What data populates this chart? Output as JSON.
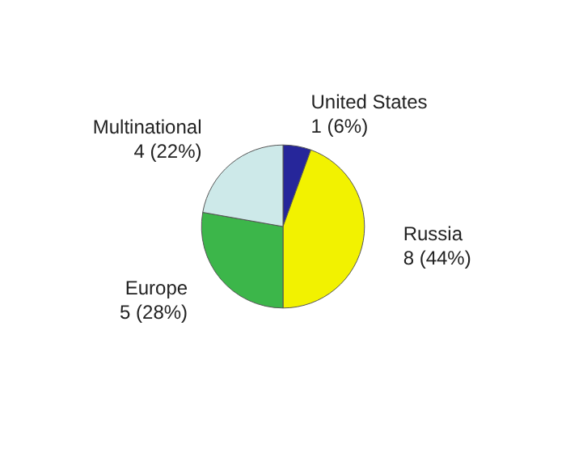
{
  "chart_data": {
    "type": "pie",
    "categories": [
      "United States",
      "Russia",
      "Europe",
      "Multinational"
    ],
    "values": [
      1,
      8,
      5,
      4
    ],
    "value_labels": [
      "1 (6%)",
      "8 (44%)",
      "5 (28%)",
      "4 (22%)"
    ],
    "colors": [
      "#26269a",
      "#f2f200",
      "#3cb64a",
      "#cde9e9"
    ]
  }
}
